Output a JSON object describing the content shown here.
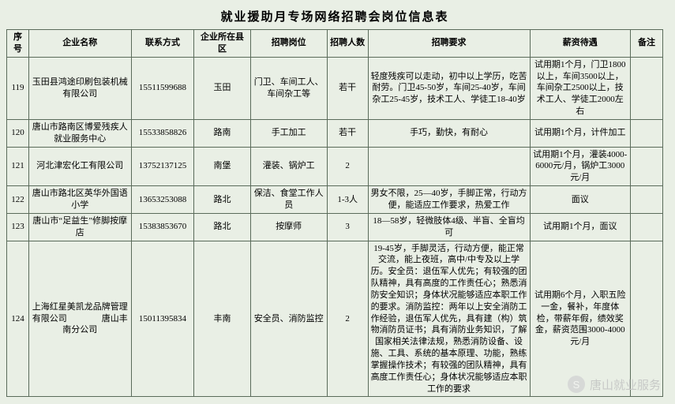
{
  "title": "就业援助月专场网络招聘会岗位信息表",
  "title_fontsize": 15,
  "header_fontsize": 11,
  "cell_fontsize": 11,
  "border_color": "#5a6b5a",
  "background_color": "#e9efe5",
  "columns": [
    "序号",
    "企业名称",
    "联系方式",
    "企业所在县区",
    "招聘岗位",
    "招聘人数",
    "招聘要求",
    "薪资待遇",
    "备注"
  ],
  "rows": [
    {
      "seq": "119",
      "company": "玉田县鸿途印刷包装机械有限公司",
      "tel": "15511599688",
      "area": "玉田",
      "position": "门卫、车间工人、车间杂工等",
      "count": "若干",
      "requirement": "轻度残疾可以走动，初中以上学历，吃苦耐劳。门卫45-50岁，车间25-40岁，车间杂工25-45岁，技术工人、学徒工18-40岁",
      "salary": "试用期1个月，门卫1800以上，车间3500以上，车间杂工2500以上，技术工人、学徒工2000左右",
      "note": ""
    },
    {
      "seq": "120",
      "company": "唐山市路南区博爱残疾人就业服务中心",
      "tel": "15533858826",
      "area": "路南",
      "position": "手工加工",
      "count": "若干",
      "requirement": "手巧，勤快，有耐心",
      "salary": "试用期1个月，计件加工",
      "note": ""
    },
    {
      "seq": "121",
      "company": "河北津宏化工有限公司",
      "tel": "13752137125",
      "area": "南堡",
      "position": "灌装、锅炉工",
      "count": "2",
      "requirement": "",
      "salary": "试用期1个月，灌装4000-6000元/月，锅炉工3000元/月",
      "note": ""
    },
    {
      "seq": "122",
      "company": "唐山市路北区英华外国语小学",
      "tel": "13653253088",
      "area": "路北",
      "position": "保洁、食堂工作人员",
      "count": "1-3人",
      "requirement": "男女不限，25—40岁，手脚正常，行动方便，能适应工作要求，热爱工作",
      "salary": "面议",
      "note": ""
    },
    {
      "seq": "123",
      "company": "唐山市“足益生”修脚按摩店",
      "tel": "15383853670",
      "area": "路北",
      "position": "按摩师",
      "count": "3",
      "requirement": "18—58岁，轻微肢体4级、半盲、全盲均可",
      "salary": "试用期1个月，面议",
      "note": ""
    },
    {
      "seq": "124",
      "company": "上海红星美凯龙品牌管理有限公司　　　　唐山丰南分公司",
      "tel": "15011395834",
      "area": "丰南",
      "position": "安全员、消防监控",
      "count": "2",
      "requirement": "19-45岁，手脚灵活，行动方便，能正常交流，能上夜班，高中/中专及以上学历。安全员：退伍军人优先；有较强的团队精神，具有高度的工作责任心；熟悉消防安全知识；身体状况能够适应本职工作的要求。消防监控：两年以上安全消防工作经验，退伍军人优先，具有建（构）筑物消防员证书；具有消防业务知识，了解国家相关法律法规，熟悉消防设备、设施、工具、系统的基本原理、功能，熟练掌握操作技术；有较强的团队精神，具有高度工作责任心；身体状况能够适应本职工作的要求",
      "salary": "试用期6个月，入职五险一金，餐补，年度体检，带薪年假，绩效奖金，薪资范围3000-4000元/月",
      "note": ""
    }
  ],
  "watermark": {
    "icon_label": "S",
    "text": "唐山就业服务",
    "color": "#c7c9c7"
  }
}
